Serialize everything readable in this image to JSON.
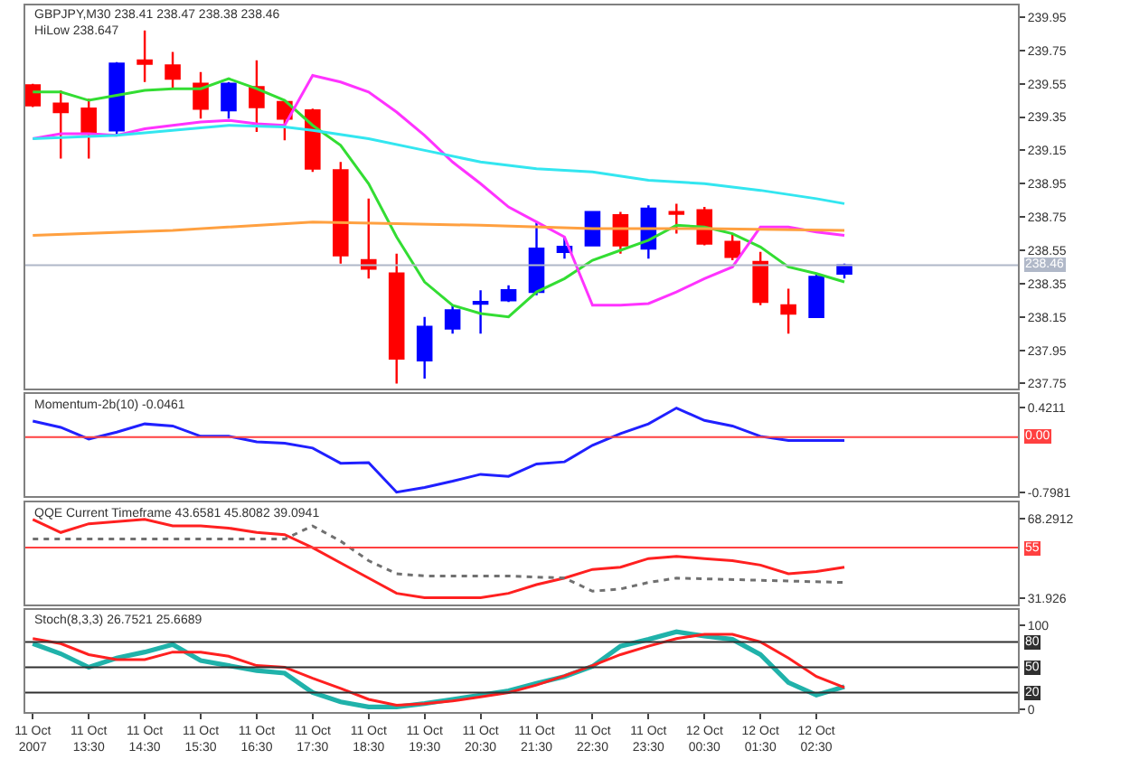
{
  "chart_data": [
    {
      "type": "candlestick",
      "title": "GBPJPY,M30 238.41 238.47 238.38 238.46",
      "subtitle": "HiLow 238.647",
      "x": [
        "2007-10-11T12:30",
        "2007-10-11T13:00",
        "2007-10-11T13:30",
        "2007-10-11T14:00",
        "2007-10-11T14:30",
        "2007-10-11T15:00",
        "2007-10-11T15:30",
        "2007-10-11T16:00",
        "2007-10-11T16:30",
        "2007-10-11T17:00",
        "2007-10-11T17:30",
        "2007-10-11T18:00",
        "2007-10-11T18:30",
        "2007-10-11T19:00",
        "2007-10-11T19:30",
        "2007-10-11T20:00",
        "2007-10-11T20:30",
        "2007-10-11T21:00",
        "2007-10-11T21:30",
        "2007-10-11T22:00",
        "2007-10-11T22:30",
        "2007-10-11T23:00",
        "2007-10-11T23:30",
        "2007-10-12T00:00",
        "2007-10-12T00:30",
        "2007-10-12T01:00",
        "2007-10-12T01:30",
        "2007-10-12T02:00",
        "2007-10-12T02:30",
        "2007-10-12T03:00"
      ],
      "ohlc": [
        [
          239.54,
          239.55,
          239.41,
          239.42
        ],
        [
          239.43,
          239.51,
          239.1,
          239.38
        ],
        [
          239.4,
          239.46,
          239.1,
          239.25
        ],
        [
          239.27,
          239.68,
          239.24,
          239.67
        ],
        [
          239.69,
          239.87,
          239.56,
          239.67
        ],
        [
          239.66,
          239.74,
          239.52,
          239.58
        ],
        [
          239.55,
          239.62,
          239.34,
          239.4
        ],
        [
          239.39,
          239.56,
          239.34,
          239.55
        ],
        [
          239.53,
          239.69,
          239.26,
          239.41
        ],
        [
          239.44,
          239.45,
          239.21,
          239.34
        ],
        [
          239.39,
          239.4,
          239.02,
          239.04
        ],
        [
          239.03,
          239.08,
          238.47,
          238.52
        ],
        [
          238.49,
          238.86,
          238.38,
          238.44
        ],
        [
          238.41,
          238.53,
          237.75,
          237.9
        ],
        [
          237.89,
          238.15,
          237.78,
          238.09
        ],
        [
          238.08,
          238.22,
          238.05,
          238.19
        ],
        [
          238.23,
          238.31,
          238.05,
          238.24
        ],
        [
          238.25,
          238.34,
          238.24,
          238.31
        ],
        [
          238.3,
          238.72,
          238.28,
          238.56
        ],
        [
          238.54,
          238.63,
          238.5,
          238.57
        ],
        [
          238.58,
          238.78,
          238.58,
          238.78
        ],
        [
          238.76,
          238.78,
          238.53,
          238.58
        ],
        [
          238.56,
          238.82,
          238.5,
          238.8
        ],
        [
          238.78,
          238.83,
          238.65,
          238.77
        ],
        [
          238.79,
          238.81,
          238.58,
          238.59
        ],
        [
          238.6,
          238.65,
          238.49,
          238.51
        ],
        [
          238.48,
          238.54,
          238.22,
          238.24
        ],
        [
          238.22,
          238.32,
          238.05,
          238.17
        ],
        [
          238.15,
          238.41,
          238.15,
          238.39
        ],
        [
          238.41,
          238.47,
          238.38,
          238.46
        ]
      ],
      "colors": [
        "#ff0000",
        "#ff0000",
        "#ff0000",
        "#0000ff",
        "#ff0000",
        "#ff0000",
        "#ff0000",
        "#0000ff",
        "#ff0000",
        "#ff0000",
        "#ff0000",
        "#ff0000",
        "#ff0000",
        "#ff0000",
        "#0000ff",
        "#0000ff",
        "#0000ff",
        "#0000ff",
        "#0000ff",
        "#0000ff",
        "#0000ff",
        "#ff0000",
        "#0000ff",
        "#ff0000",
        "#ff0000",
        "#ff0000",
        "#ff0000",
        "#ff0000",
        "#0000ff",
        "#0000ff"
      ],
      "series": [
        {
          "type": "line",
          "color": "#33dd33",
          "values": [
            239.5,
            239.5,
            239.45,
            239.48,
            239.51,
            239.52,
            239.52,
            239.58,
            239.52,
            239.45,
            239.3,
            239.18,
            238.95,
            238.63,
            238.36,
            238.22,
            238.17,
            238.15,
            238.3,
            238.38,
            238.49,
            238.55,
            238.61,
            238.7,
            238.69,
            238.65,
            238.57,
            238.45,
            238.41,
            238.36
          ]
        },
        {
          "type": "line",
          "color": "#ff33ff",
          "values": [
            239.22,
            239.25,
            239.25,
            239.24,
            239.28,
            239.3,
            239.32,
            239.33,
            239.31,
            239.3,
            239.6,
            239.56,
            239.5,
            239.38,
            239.24,
            239.08,
            238.95,
            238.81,
            238.72,
            238.63,
            238.22,
            238.22,
            238.23,
            238.3,
            238.38,
            238.45,
            238.69,
            238.69,
            238.66,
            238.64
          ]
        },
        {
          "type": "line",
          "color": "#33e6f0",
          "x": [
            "2007-10-11T12:30",
            "2007-10-11T14:00",
            "2007-10-11T16:00",
            "2007-10-11T17:00",
            "2007-10-11T17:30",
            "2007-10-11T18:30",
            "2007-10-11T19:30",
            "2007-10-11T20:30",
            "2007-10-11T21:30",
            "2007-10-11T22:30",
            "2007-10-11T23:30",
            "2007-10-12T00:30",
            "2007-10-12T01:30",
            "2007-10-12T02:30",
            "2007-10-12T03:00"
          ],
          "values": [
            239.22,
            239.24,
            239.3,
            239.29,
            239.27,
            239.22,
            239.15,
            239.08,
            239.04,
            239.02,
            238.97,
            238.95,
            238.91,
            238.86,
            238.83
          ]
        },
        {
          "type": "line",
          "color": "#ffa040",
          "x": [
            "2007-10-11T12:30",
            "2007-10-11T15:00",
            "2007-10-11T17:30",
            "2007-10-11T19:00",
            "2007-10-11T20:30",
            "2007-10-11T22:30",
            "2007-10-12T00:30",
            "2007-10-12T03:00"
          ],
          "values": [
            238.64,
            238.67,
            238.72,
            238.71,
            238.7,
            238.68,
            238.68,
            238.67
          ]
        }
      ],
      "xlim": [
        "2007-10-11T12:22",
        "2007-10-12T06:06"
      ],
      "ylim": [
        237.72,
        240.02
      ],
      "yticks": [
        239.95,
        239.75,
        239.55,
        239.35,
        239.15,
        238.95,
        238.75,
        238.55,
        238.35,
        238.15,
        237.95,
        237.75
      ],
      "ref_lines": [
        {
          "axis": "y",
          "value": 238.46,
          "label": "238.46",
          "color": "#b0b8c8"
        }
      ],
      "tick_labels": "y",
      "grid": false
    },
    {
      "type": "line",
      "title": "Momentum-2b(10) -0.0461",
      "x": [
        "2007-10-11T12:30",
        "2007-10-11T13:00",
        "2007-10-11T13:30",
        "2007-10-11T14:00",
        "2007-10-11T14:30",
        "2007-10-11T15:00",
        "2007-10-11T15:30",
        "2007-10-11T16:00",
        "2007-10-11T16:30",
        "2007-10-11T17:00",
        "2007-10-11T17:30",
        "2007-10-11T18:00",
        "2007-10-11T18:30",
        "2007-10-11T19:00",
        "2007-10-11T19:30",
        "2007-10-11T20:00",
        "2007-10-11T20:30",
        "2007-10-11T21:00",
        "2007-10-11T21:30",
        "2007-10-11T22:00",
        "2007-10-11T22:30",
        "2007-10-11T23:00",
        "2007-10-11T23:30",
        "2007-10-12T00:00",
        "2007-10-12T00:30",
        "2007-10-12T01:00",
        "2007-10-12T01:30",
        "2007-10-12T02:00",
        "2007-10-12T02:30",
        "2007-10-12T03:00"
      ],
      "series": [
        {
          "color": "#2020ff",
          "values": [
            0.23,
            0.14,
            -0.03,
            0.07,
            0.19,
            0.16,
            0.01,
            0.01,
            -0.07,
            -0.09,
            -0.16,
            -0.38,
            -0.37,
            -0.8,
            -0.73,
            -0.64,
            -0.54,
            -0.57,
            -0.39,
            -0.36,
            -0.12,
            0.05,
            0.19,
            0.42,
            0.24,
            0.16,
            0.01,
            -0.05,
            -0.05,
            -0.05
          ]
        }
      ],
      "xlim": [
        "2007-10-11T12:22",
        "2007-10-12T06:06"
      ],
      "ylim": [
        -0.86,
        0.62
      ],
      "yticks": [
        0.4211,
        -0.7981
      ],
      "ref_lines": [
        {
          "axis": "y",
          "value": 0,
          "label": "0.00",
          "color": "#ff4040"
        }
      ],
      "tick_labels": "y",
      "grid": false
    },
    {
      "type": "line",
      "title": "QQE Current Timeframe 43.6581 45.8082 39.0941",
      "x": [
        "2007-10-11T12:30",
        "2007-10-11T13:00",
        "2007-10-11T13:30",
        "2007-10-11T14:00",
        "2007-10-11T14:30",
        "2007-10-11T15:00",
        "2007-10-11T15:30",
        "2007-10-11T16:00",
        "2007-10-11T16:30",
        "2007-10-11T17:00",
        "2007-10-11T17:30",
        "2007-10-11T18:00",
        "2007-10-11T18:30",
        "2007-10-11T19:00",
        "2007-10-11T19:30",
        "2007-10-11T20:00",
        "2007-10-11T20:30",
        "2007-10-11T21:00",
        "2007-10-11T21:30",
        "2007-10-11T22:00",
        "2007-10-11T22:30",
        "2007-10-11T23:00",
        "2007-10-11T23:30",
        "2007-10-12T00:00",
        "2007-10-12T00:30",
        "2007-10-12T01:00",
        "2007-10-12T01:30",
        "2007-10-12T02:00",
        "2007-10-12T02:30",
        "2007-10-12T03:00"
      ],
      "series": [
        {
          "color": "#ff2020",
          "values": [
            68,
            62,
            66,
            67,
            68,
            65,
            65,
            64,
            62,
            61,
            55,
            48,
            41,
            34,
            32,
            32,
            32,
            34,
            38,
            41,
            45,
            46,
            50,
            51,
            50,
            49,
            47,
            43,
            44,
            46
          ]
        },
        {
          "color": "#707070",
          "line_style": "dotted",
          "x": [
            "2007-10-11T12:30",
            "2007-10-11T17:00",
            "2007-10-11T17:30",
            "2007-10-11T18:00",
            "2007-10-11T18:30",
            "2007-10-11T19:00",
            "2007-10-11T19:30",
            "2007-10-11T21:00",
            "2007-10-11T22:00",
            "2007-10-11T22:30",
            "2007-10-11T23:00",
            "2007-10-11T23:30",
            "2007-10-12T00:00",
            "2007-10-12T03:00"
          ],
          "values": [
            59,
            59,
            65,
            58,
            49,
            43,
            42,
            42,
            41,
            35,
            36,
            39,
            41,
            39
          ]
        }
      ],
      "xlim": [
        "2007-10-11T12:22",
        "2007-10-12T06:06"
      ],
      "ylim": [
        29,
        76
      ],
      "yticks": [
        68.2912,
        31.926
      ],
      "ref_lines": [
        {
          "axis": "y",
          "value": 55,
          "label": "55",
          "color": "#ff4040"
        }
      ],
      "tick_labels": "y",
      "grid": false
    },
    {
      "type": "line",
      "title": "Stoch(8,3,3) 26.7521 25.6689",
      "x": [
        "2007-10-11T12:30",
        "2007-10-11T13:00",
        "2007-10-11T13:30",
        "2007-10-11T14:00",
        "2007-10-11T14:30",
        "2007-10-11T15:00",
        "2007-10-11T15:30",
        "2007-10-11T16:00",
        "2007-10-11T16:30",
        "2007-10-11T17:00",
        "2007-10-11T17:30",
        "2007-10-11T18:00",
        "2007-10-11T18:30",
        "2007-10-11T19:00",
        "2007-10-11T19:30",
        "2007-10-11T20:00",
        "2007-10-11T20:30",
        "2007-10-11T21:00",
        "2007-10-11T21:30",
        "2007-10-11T22:00",
        "2007-10-11T22:30",
        "2007-10-11T23:00",
        "2007-10-11T23:30",
        "2007-10-12T00:00",
        "2007-10-12T00:30",
        "2007-10-12T01:00",
        "2007-10-12T01:30",
        "2007-10-12T02:00",
        "2007-10-12T02:30",
        "2007-10-12T03:00"
      ],
      "series": [
        {
          "color": "#20b2aa",
          "values": [
            78,
            66,
            50,
            61,
            68,
            77,
            58,
            52,
            46,
            43,
            20,
            9,
            3,
            3,
            7,
            12,
            17,
            22,
            31,
            39,
            51,
            75,
            83,
            92,
            87,
            83,
            65,
            32,
            17,
            27
          ]
        },
        {
          "color": "#ff2020",
          "values": [
            84,
            78,
            65,
            59,
            59,
            68,
            68,
            63,
            52,
            50,
            37,
            25,
            12,
            5,
            7,
            10,
            15,
            20,
            29,
            40,
            52,
            65,
            75,
            84,
            89,
            89,
            80,
            61,
            39,
            26
          ]
        }
      ],
      "xlim": [
        "2007-10-11T12:22",
        "2007-10-12T06:06"
      ],
      "ylim": [
        -3,
        118
      ],
      "yticks": [
        100,
        0
      ],
      "xticks": [
        {
          "value": "2007-10-11T12:30",
          "label": "11 Oct 2007"
        },
        {
          "value": "2007-10-11T13:30",
          "label": "11 Oct 13:30"
        },
        {
          "value": "2007-10-11T14:30",
          "label": "11 Oct 14:30"
        },
        {
          "value": "2007-10-11T15:30",
          "label": "11 Oct 15:30"
        },
        {
          "value": "2007-10-11T16:30",
          "label": "11 Oct 16:30"
        },
        {
          "value": "2007-10-11T17:30",
          "label": "11 Oct 17:30"
        },
        {
          "value": "2007-10-11T18:30",
          "label": "11 Oct 18:30"
        },
        {
          "value": "2007-10-11T19:30",
          "label": "11 Oct 19:30"
        },
        {
          "value": "2007-10-11T20:30",
          "label": "11 Oct 20:30"
        },
        {
          "value": "2007-10-11T21:30",
          "label": "11 Oct 21:30"
        },
        {
          "value": "2007-10-11T22:30",
          "label": "11 Oct 22:30"
        },
        {
          "value": "2007-10-11T23:30",
          "label": "11 Oct 23:30"
        },
        {
          "value": "2007-10-12T00:30",
          "label": "12 Oct 00:30"
        },
        {
          "value": "2007-10-12T01:30",
          "label": "12 Oct 01:30"
        },
        {
          "value": "2007-10-12T02:30",
          "label": "12 Oct 02:30"
        }
      ],
      "ref_lines": [
        {
          "axis": "y",
          "value": 80,
          "label": "80",
          "color": "#303030"
        },
        {
          "axis": "y",
          "value": 50,
          "label": "50",
          "color": "#303030"
        },
        {
          "axis": "y",
          "value": 20,
          "label": "20",
          "color": "#303030"
        }
      ],
      "grid": false
    }
  ]
}
